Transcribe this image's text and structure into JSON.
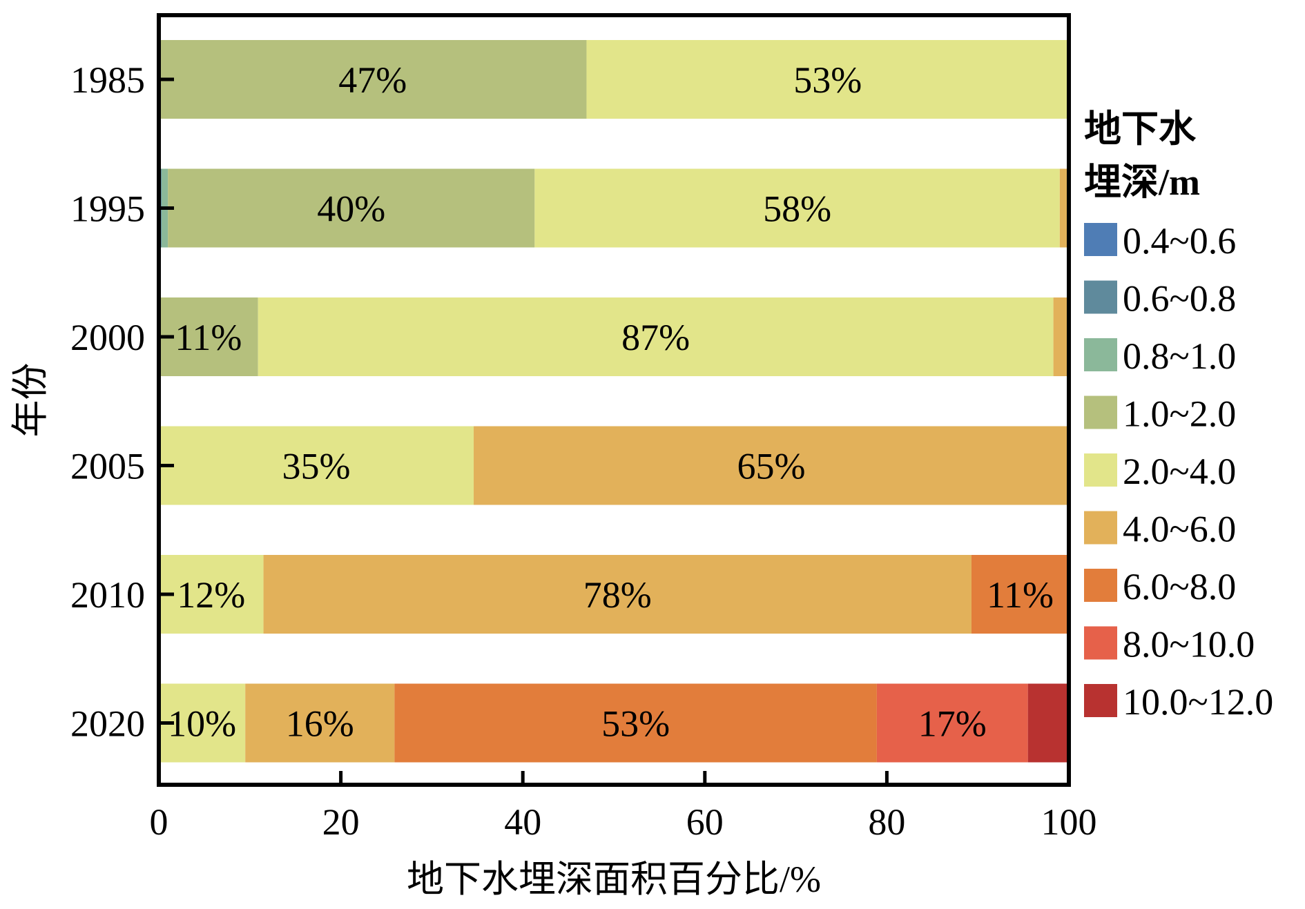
{
  "chart_data": {
    "type": "bar",
    "orientation": "horizontal",
    "stacked": true,
    "categories": [
      "1985",
      "1995",
      "2000",
      "2005",
      "2010",
      "2020"
    ],
    "xlabel": "地下水埋深面积百分比/%",
    "ylabel": "年份",
    "xlim": [
      0,
      100
    ],
    "xticks": [
      "0",
      "20",
      "40",
      "60",
      "80",
      "100"
    ],
    "grid": false,
    "legend_title": "地下水埋深/m",
    "legend_position": "right",
    "series": [
      {
        "name": "0.4~0.6",
        "color": "#4f7db5",
        "values": [
          0,
          0,
          0,
          0,
          0,
          0
        ]
      },
      {
        "name": "0.6~0.8",
        "color": "#5f8a9c",
        "values": [
          0,
          0.3,
          0,
          0,
          0,
          0
        ]
      },
      {
        "name": "0.8~1.0",
        "color": "#8bb89a",
        "values": [
          0,
          0.7,
          0,
          0,
          0,
          0
        ]
      },
      {
        "name": "1.0~2.0",
        "color": "#b5c07d",
        "values": [
          47,
          40.3,
          10.9,
          0,
          0,
          0
        ]
      },
      {
        "name": "2.0~4.0",
        "color": "#e2e58a",
        "values": [
          53,
          57.7,
          87.4,
          34.6,
          11.5,
          9.5
        ]
      },
      {
        "name": "4.0~6.0",
        "color": "#e2b15a",
        "values": [
          0,
          1,
          1.7,
          65.4,
          77.8,
          16.4
        ]
      },
      {
        "name": "6.0~8.0",
        "color": "#e27d3b",
        "values": [
          0,
          0,
          0,
          0,
          10.7,
          53
        ]
      },
      {
        "name": "8.0~10.0",
        "color": "#e6614a",
        "values": [
          0,
          0,
          0,
          0,
          0,
          16.6
        ]
      },
      {
        "name": "10.0~12.0",
        "color": "#b83230",
        "values": [
          0,
          0,
          0,
          0,
          0,
          4.5
        ]
      }
    ],
    "data_labels": [
      {
        "category": "1985",
        "series": "1.0~2.0",
        "text": "47%"
      },
      {
        "category": "1985",
        "series": "2.0~4.0",
        "text": "53%"
      },
      {
        "category": "1995",
        "series": "1.0~2.0",
        "text": "40%"
      },
      {
        "category": "1995",
        "series": "2.0~4.0",
        "text": "58%"
      },
      {
        "category": "2000",
        "series": "1.0~2.0",
        "text": "11%"
      },
      {
        "category": "2000",
        "series": "2.0~4.0",
        "text": "87%"
      },
      {
        "category": "2005",
        "series": "2.0~4.0",
        "text": "35%"
      },
      {
        "category": "2005",
        "series": "4.0~6.0",
        "text": "65%"
      },
      {
        "category": "2010",
        "series": "2.0~4.0",
        "text": "12%"
      },
      {
        "category": "2010",
        "series": "4.0~6.0",
        "text": "78%"
      },
      {
        "category": "2010",
        "series": "6.0~8.0",
        "text": "11%"
      },
      {
        "category": "2020",
        "series": "2.0~4.0",
        "text": "10%"
      },
      {
        "category": "2020",
        "series": "4.0~6.0",
        "text": "16%"
      },
      {
        "category": "2020",
        "series": "6.0~8.0",
        "text": "53%"
      },
      {
        "category": "2020",
        "series": "8.0~10.0",
        "text": "17%"
      }
    ]
  }
}
